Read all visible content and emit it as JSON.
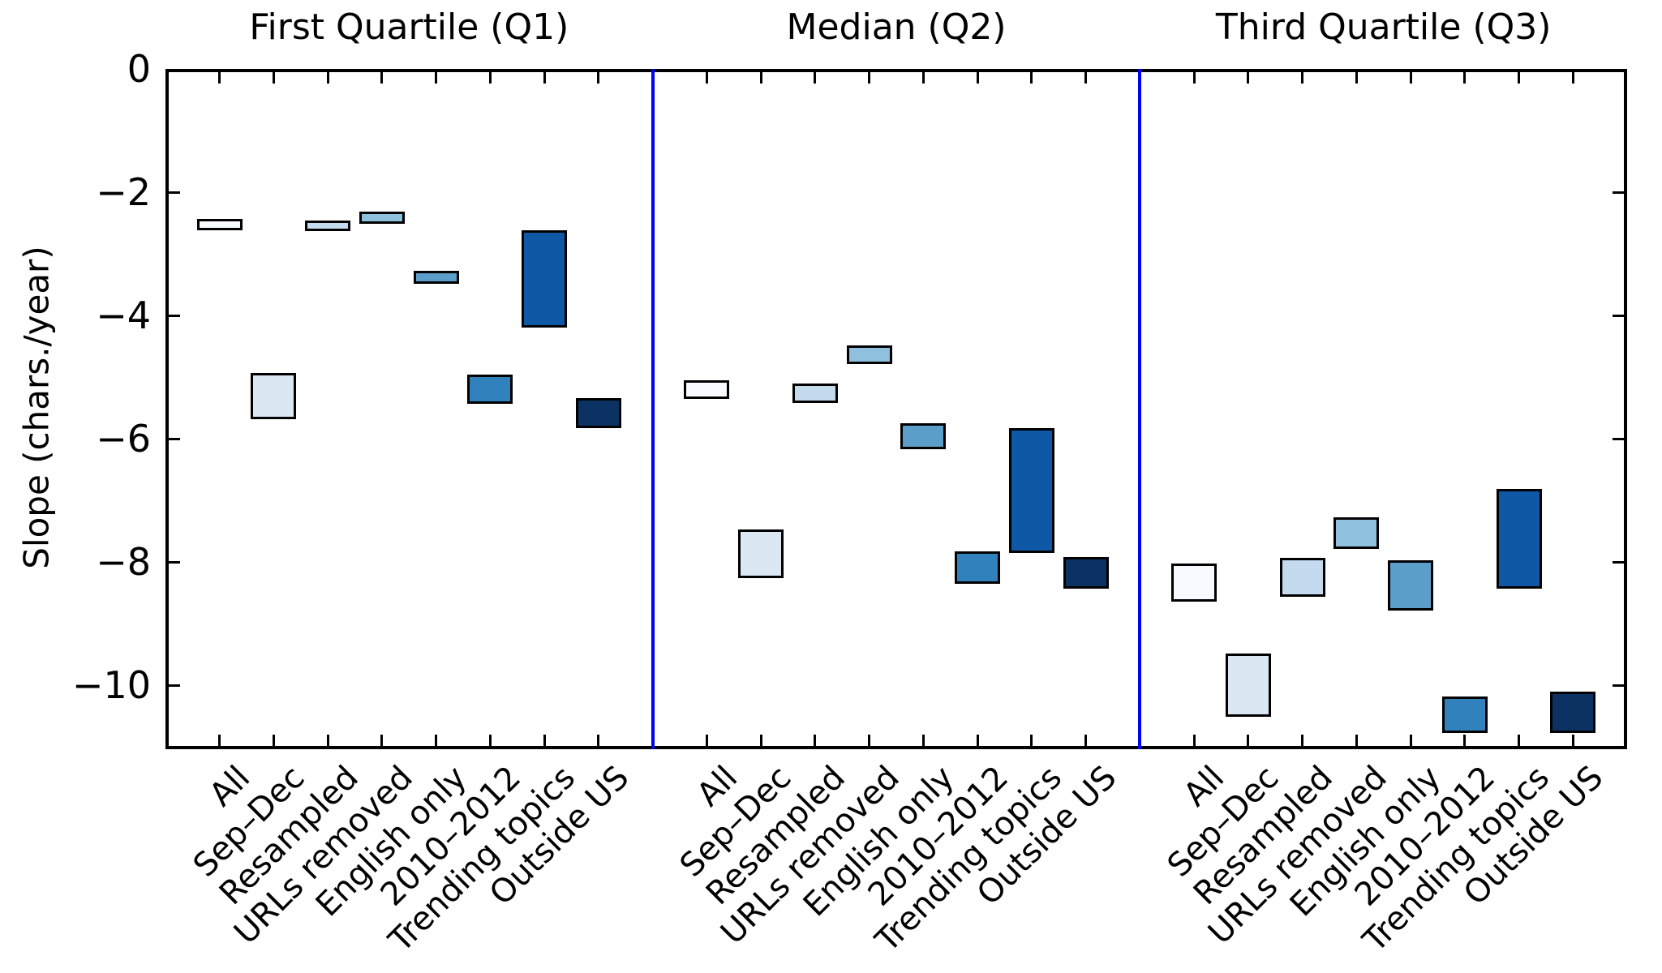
{
  "chart_data": {
    "type": "bar",
    "subtype": "floating-range-bars",
    "title": "",
    "xlabel": "",
    "ylabel": "Slope (chars./year)",
    "ylim": [
      -11.05,
      0
    ],
    "yticks": [
      0,
      -2,
      -4,
      -6,
      -8,
      -10
    ],
    "ytick_labels": [
      "0",
      "−2",
      "−4",
      "−6",
      "−8",
      "−10"
    ],
    "grid": false,
    "legend": null,
    "categories": [
      "All",
      "Sep–Dec",
      "Resampled",
      "URLs removed",
      "English only",
      "2010–2012",
      "Trending topics",
      "Outside US"
    ],
    "bar_colors": [
      "#f7fbff",
      "#dbe8f4",
      "#c4daee",
      "#8fc1de",
      "#5b9ec9",
      "#3181bd",
      "#0f58a5",
      "#0c3263"
    ],
    "bar_edge_color": "#000000",
    "axis_color": "#000000",
    "divider_color": "#0000ff",
    "panels": [
      {
        "title": "First Quartile (Q1)",
        "series": [
          {
            "label": "All",
            "high": -2.44,
            "low": -2.62
          },
          {
            "label": "Sep–Dec",
            "high": -4.93,
            "low": -5.69
          },
          {
            "label": "Resampled",
            "high": -2.46,
            "low": -2.63
          },
          {
            "label": "URLs removed",
            "high": -2.32,
            "low": -2.51
          },
          {
            "label": "English only",
            "high": -3.27,
            "low": -3.49
          },
          {
            "label": "2010–2012",
            "high": -4.96,
            "low": -5.44
          },
          {
            "label": "Trending topics",
            "high": -2.62,
            "low": -4.2
          },
          {
            "label": "Outside US",
            "high": -5.34,
            "low": -5.83
          }
        ]
      },
      {
        "title": "Median (Q2)",
        "series": [
          {
            "label": "All",
            "high": -5.05,
            "low": -5.36
          },
          {
            "label": "Sep–Dec",
            "high": -7.48,
            "low": -8.26
          },
          {
            "label": "Resampled",
            "high": -5.11,
            "low": -5.42
          },
          {
            "label": "URLs removed",
            "high": -4.49,
            "low": -4.79
          },
          {
            "label": "English only",
            "high": -5.75,
            "low": -6.17
          },
          {
            "label": "2010–2012",
            "high": -7.83,
            "low": -8.36
          },
          {
            "label": "Trending topics",
            "high": -5.83,
            "low": -7.85
          },
          {
            "label": "Outside US",
            "high": -7.92,
            "low": -8.43
          }
        ]
      },
      {
        "title": "Third Quartile (Q3)",
        "series": [
          {
            "label": "All",
            "high": -8.03,
            "low": -8.65
          },
          {
            "label": "Sep–Dec",
            "high": -9.49,
            "low": -10.51
          },
          {
            "label": "Resampled",
            "high": -7.93,
            "low": -8.57
          },
          {
            "label": "URLs removed",
            "high": -7.27,
            "low": -7.79
          },
          {
            "label": "English only",
            "high": -7.97,
            "low": -8.79
          },
          {
            "label": "2010–2012",
            "high": -10.19,
            "low": -10.78
          },
          {
            "label": "Trending topics",
            "high": -6.81,
            "low": -8.43
          },
          {
            "label": "Outside US",
            "high": -10.11,
            "low": -10.78
          }
        ]
      }
    ]
  }
}
